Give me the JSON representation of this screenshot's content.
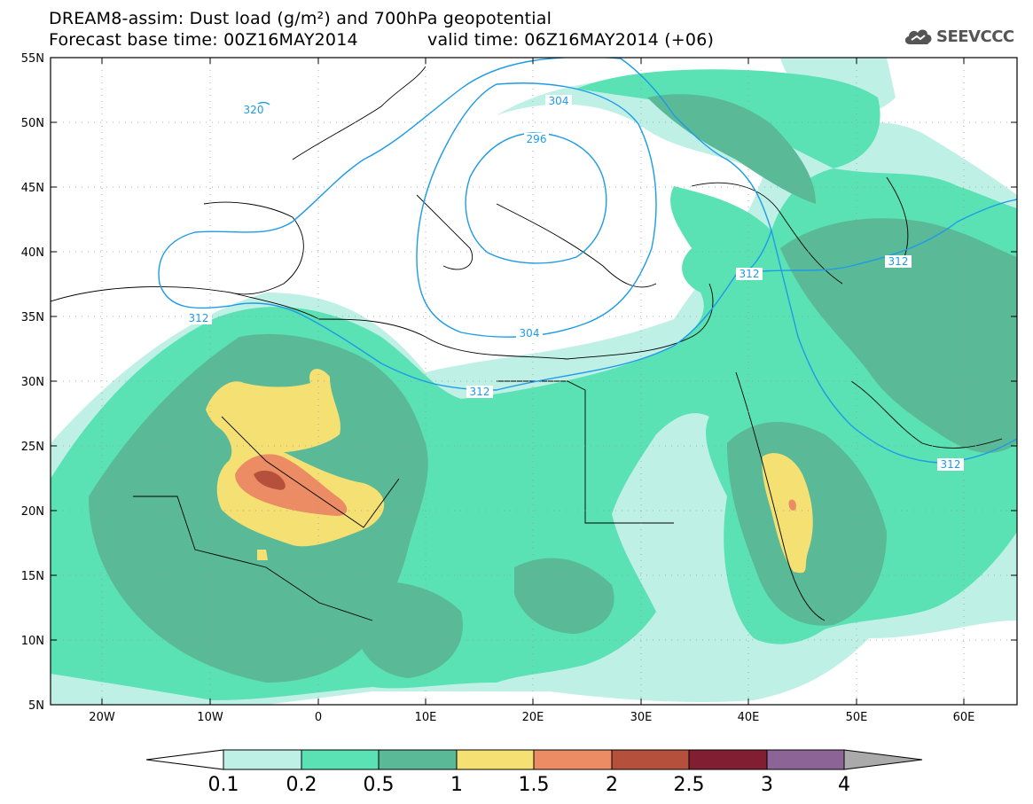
{
  "title": {
    "line1": "DREAM8-assim: Dust load (g/m²) and 700hPa geopotential",
    "line2": "Forecast base time: 00Z16MAY2014",
    "line3": "valid time: 06Z16MAY2014 (+06)"
  },
  "logo": {
    "text": "SEEVCCC",
    "icon": "cloud-icon"
  },
  "axes": {
    "lat_ticks": [
      "55N",
      "50N",
      "45N",
      "40N",
      "35N",
      "30N",
      "25N",
      "20N",
      "15N",
      "10N",
      "5N"
    ],
    "lon_ticks": [
      "20W",
      "10W",
      "0",
      "10E",
      "20E",
      "30E",
      "40E",
      "50E",
      "60E"
    ]
  },
  "contours": {
    "labels": [
      "320",
      "304",
      "296",
      "312",
      "304",
      "312",
      "312",
      "312",
      "312"
    ],
    "color": "#1e9be6"
  },
  "colorbar": {
    "labels": [
      "0.1",
      "0.2",
      "0.5",
      "1",
      "1.5",
      "2",
      "2.5",
      "3",
      "4"
    ],
    "colors": [
      "#bff0e6",
      "#5ae1b4",
      "#5ab996",
      "#f5e173",
      "#eb8c64",
      "#b4503c",
      "#821e32",
      "#8c6496",
      "#aaaaaa"
    ]
  },
  "palette": {
    "c01": "#bff0e6",
    "c02": "#5ae1b4",
    "c05": "#5ab996",
    "c1": "#f5e173",
    "c15": "#eb8c64",
    "c2": "#b4503c"
  }
}
